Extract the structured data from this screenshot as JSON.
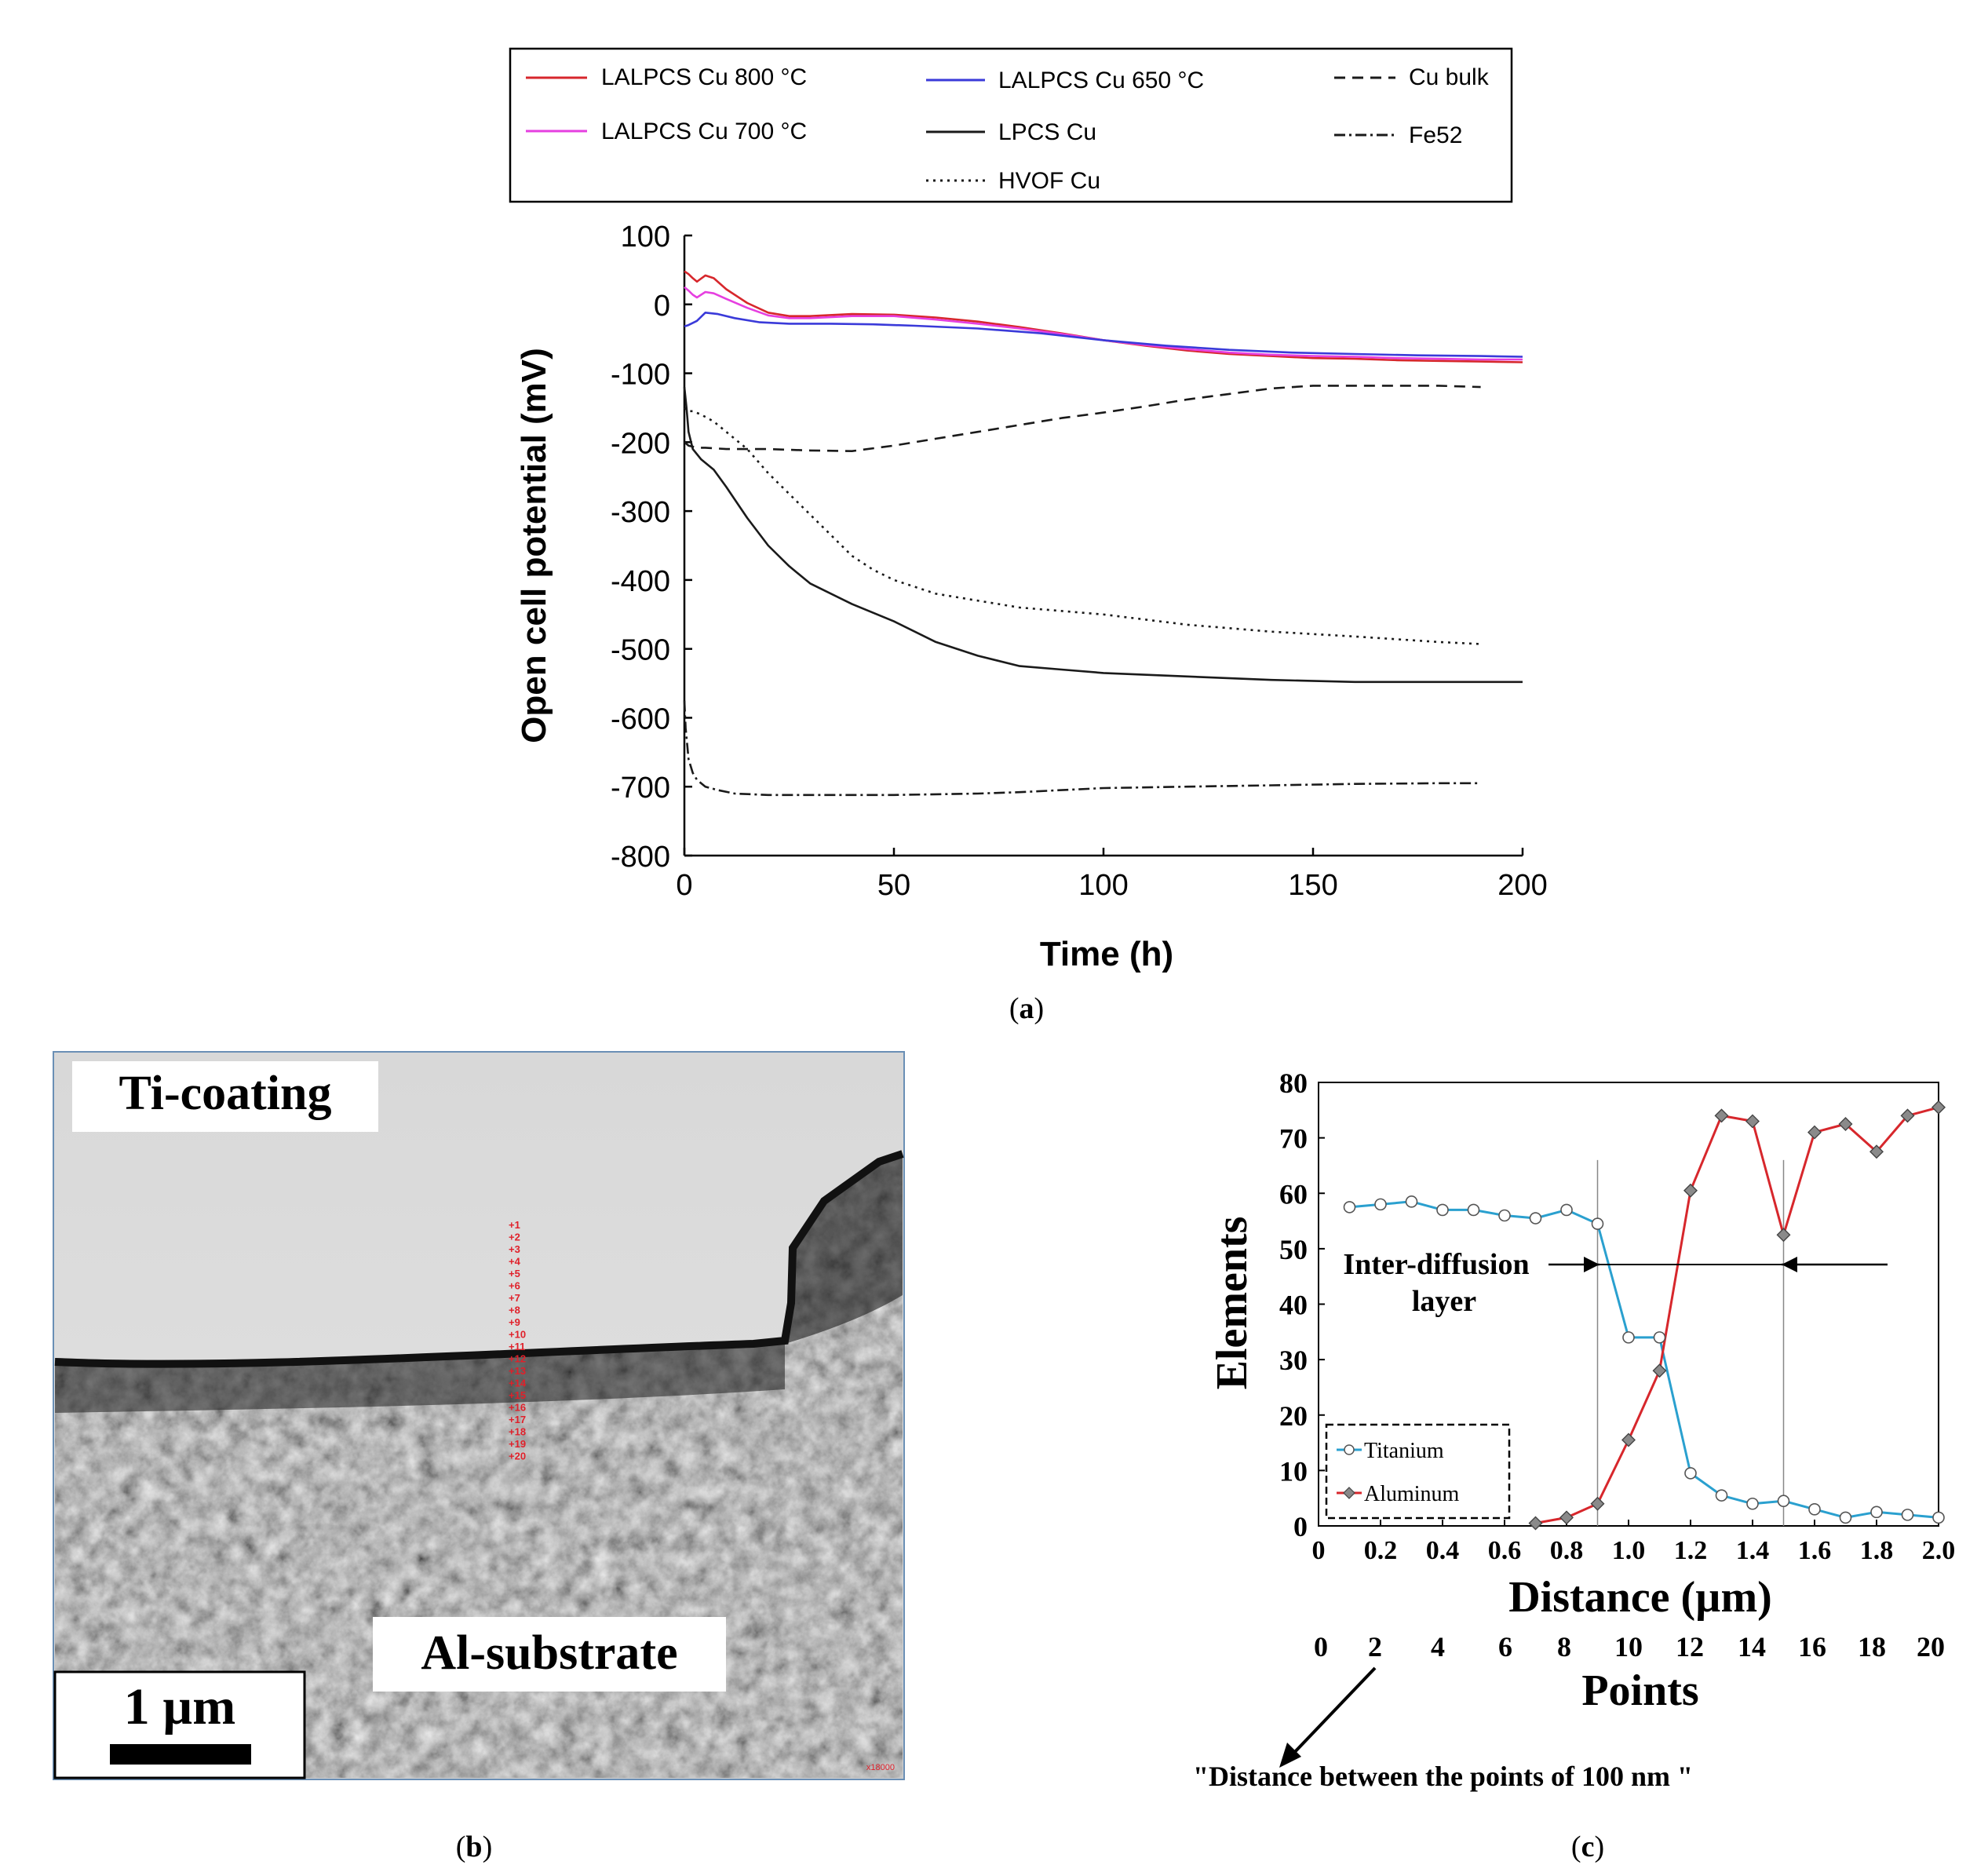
{
  "panel_a": {
    "caption_open": "(",
    "caption_letter": "a",
    "caption_close": ")",
    "chart_data": {
      "type": "line",
      "xlabel": "Time (h)",
      "ylabel": "Open cell potential (mV)",
      "xlim": [
        0,
        200
      ],
      "ylim": [
        -800,
        100
      ],
      "xticks": [
        0,
        50,
        100,
        150,
        200
      ],
      "yticks": [
        100,
        0,
        -100,
        -200,
        -300,
        -400,
        -500,
        -600,
        -700,
        -800
      ],
      "series": [
        {
          "name": "LALPCS Cu 800 °C",
          "color": "#d7272c",
          "dash": "solid",
          "x": [
            0,
            1,
            2,
            3,
            5,
            7,
            10,
            15,
            20,
            25,
            30,
            40,
            50,
            60,
            70,
            80,
            90,
            100,
            110,
            120,
            130,
            140,
            150,
            160,
            170,
            180,
            190,
            200
          ],
          "y": [
            48,
            44,
            38,
            33,
            42,
            38,
            22,
            2,
            -12,
            -17,
            -17,
            -14,
            -15,
            -19,
            -25,
            -33,
            -42,
            -52,
            -60,
            -67,
            -72,
            -75,
            -78,
            -79,
            -81,
            -82,
            -83,
            -84
          ]
        },
        {
          "name": "LALPCS Cu 700 °C",
          "color": "#e63fe0",
          "dash": "solid",
          "x": [
            0,
            1,
            2,
            3,
            5,
            7,
            10,
            15,
            20,
            25,
            30,
            40,
            50,
            60,
            70,
            80,
            90,
            100,
            110,
            120,
            130,
            140,
            150,
            160,
            170,
            180,
            190,
            200
          ],
          "y": [
            25,
            20,
            14,
            10,
            18,
            16,
            8,
            -5,
            -16,
            -20,
            -20,
            -17,
            -17,
            -22,
            -28,
            -35,
            -43,
            -52,
            -59,
            -65,
            -70,
            -73,
            -75,
            -76,
            -78,
            -79,
            -80,
            -80
          ]
        },
        {
          "name": "LALPCS Cu 650 °C",
          "color": "#3a3ad9",
          "dash": "solid",
          "x": [
            0,
            1,
            3,
            5,
            8,
            12,
            18,
            25,
            35,
            45,
            55,
            70,
            85,
            100,
            115,
            130,
            145,
            160,
            175,
            190,
            200
          ],
          "y": [
            -32,
            -30,
            -24,
            -12,
            -14,
            -20,
            -26,
            -28,
            -28,
            -29,
            -31,
            -35,
            -42,
            -52,
            -60,
            -66,
            -70,
            -72,
            -74,
            -75,
            -76
          ]
        },
        {
          "name": "Cu bulk",
          "color": "#1a1a1a",
          "dash": "14 9",
          "x": [
            0,
            1,
            3,
            5,
            10,
            20,
            30,
            40,
            50,
            60,
            70,
            80,
            90,
            100,
            110,
            120,
            130,
            140,
            150,
            160,
            170,
            180,
            190
          ],
          "y": [
            -200,
            -205,
            -208,
            -208,
            -210,
            -210,
            -212,
            -213,
            -205,
            -195,
            -185,
            -175,
            -165,
            -157,
            -148,
            -138,
            -130,
            -122,
            -118,
            -118,
            -118,
            -118,
            -120
          ]
        },
        {
          "name": "LPCS Cu",
          "color": "#1a1a1a",
          "dash": "solid",
          "x": [
            0,
            0.5,
            1,
            2,
            4,
            7,
            10,
            15,
            20,
            25,
            30,
            40,
            50,
            60,
            70,
            80,
            90,
            100,
            120,
            140,
            160,
            180,
            200
          ],
          "y": [
            -120,
            -150,
            -185,
            -210,
            -225,
            -240,
            -265,
            -310,
            -350,
            -380,
            -405,
            -435,
            -460,
            -490,
            -510,
            -525,
            -530,
            -535,
            -540,
            -545,
            -548,
            -548,
            -548
          ]
        },
        {
          "name": "HVOF Cu",
          "color": "#1a1a1a",
          "dash": "3 6",
          "x": [
            0,
            1,
            2,
            4,
            7,
            10,
            15,
            20,
            25,
            30,
            35,
            40,
            45,
            50,
            60,
            70,
            80,
            100,
            120,
            140,
            160,
            180,
            190
          ],
          "y": [
            -150,
            -155,
            -155,
            -160,
            -170,
            -185,
            -210,
            -245,
            -275,
            -305,
            -335,
            -365,
            -385,
            -400,
            -420,
            -430,
            -440,
            -450,
            -465,
            -475,
            -482,
            -490,
            -493
          ]
        },
        {
          "name": "Fe52",
          "color": "#1a1a1a",
          "dash": "14 5 3 5",
          "x": [
            0,
            0.3,
            0.7,
            1,
            2,
            3,
            5,
            8,
            12,
            20,
            30,
            50,
            60,
            70,
            80,
            90,
            100,
            120,
            140,
            160,
            180,
            190
          ],
          "y": [
            -575,
            -615,
            -640,
            -660,
            -680,
            -690,
            -700,
            -705,
            -710,
            -712,
            -712,
            -712,
            -711,
            -710,
            -708,
            -705,
            -702,
            -700,
            -698,
            -696,
            -695,
            -695
          ]
        }
      ]
    }
  },
  "panel_b": {
    "caption_open": "(",
    "caption_letter": "b",
    "caption_close": ")",
    "top_label": "Ti-coating",
    "bottom_label": "Al-substrate",
    "scale_bar_label": "1 µm",
    "magnification": "x18000",
    "marker_labels": [
      "+1",
      "+2",
      "+3",
      "+4",
      "+5",
      "+6",
      "+7",
      "+8",
      "+9",
      "+10",
      "+11",
      "+12",
      "+13",
      "+14",
      "+15",
      "+16",
      "+17",
      "+18",
      "+19",
      "+20"
    ],
    "marker_color": "#e0202a"
  },
  "panel_c": {
    "caption_open": "(",
    "caption_letter": "c",
    "caption_close": ")",
    "points_label": "Points",
    "points_ticks": [
      "0",
      "2",
      "4",
      "6",
      "8",
      "10",
      "12",
      "14",
      "16",
      "18",
      "20"
    ],
    "note": "\"Distance between the points of 100 nm \"",
    "annotation_line1": "Inter-diffusion",
    "annotation_line2": "layer",
    "chart_data": {
      "type": "line",
      "xlabel": "Distance (µm)",
      "ylabel": "Elements",
      "xlim": [
        0,
        2.0
      ],
      "ylim": [
        0,
        80
      ],
      "xtick_labels": [
        "0",
        "0.2",
        "0.4",
        "0.6",
        "0.8",
        "1.0",
        "1.2",
        "1.4",
        "1.6",
        "1.8",
        "2.0"
      ],
      "yticks": [
        0,
        10,
        20,
        30,
        40,
        50,
        60,
        70,
        80
      ],
      "vlines": [
        0.9,
        1.5
      ],
      "series": [
        {
          "name": "Titanium",
          "color": "#2aa0cf",
          "marker": "circle",
          "x": [
            0.1,
            0.2,
            0.3,
            0.4,
            0.5,
            0.6,
            0.7,
            0.8,
            0.9,
            1.0,
            1.1,
            1.2,
            1.3,
            1.4,
            1.5,
            1.6,
            1.7,
            1.8,
            1.9,
            2.0
          ],
          "y": [
            57.5,
            58,
            58.5,
            57,
            57,
            56,
            55.5,
            57,
            54.5,
            34,
            34,
            9.5,
            5.5,
            4,
            4.5,
            3,
            1.5,
            2.5,
            2,
            1.5
          ]
        },
        {
          "name": "Aluminum",
          "color": "#d7272c",
          "marker": "diamond",
          "x": [
            0.7,
            0.8,
            0.9,
            1.0,
            1.1,
            1.2,
            1.3,
            1.4,
            1.5,
            1.6,
            1.7,
            1.8,
            1.9,
            2.0
          ],
          "y": [
            0.5,
            1.5,
            4,
            15.5,
            28,
            60.5,
            74,
            73,
            52.5,
            71,
            72.5,
            67.5,
            74,
            75.5
          ]
        }
      ]
    }
  }
}
